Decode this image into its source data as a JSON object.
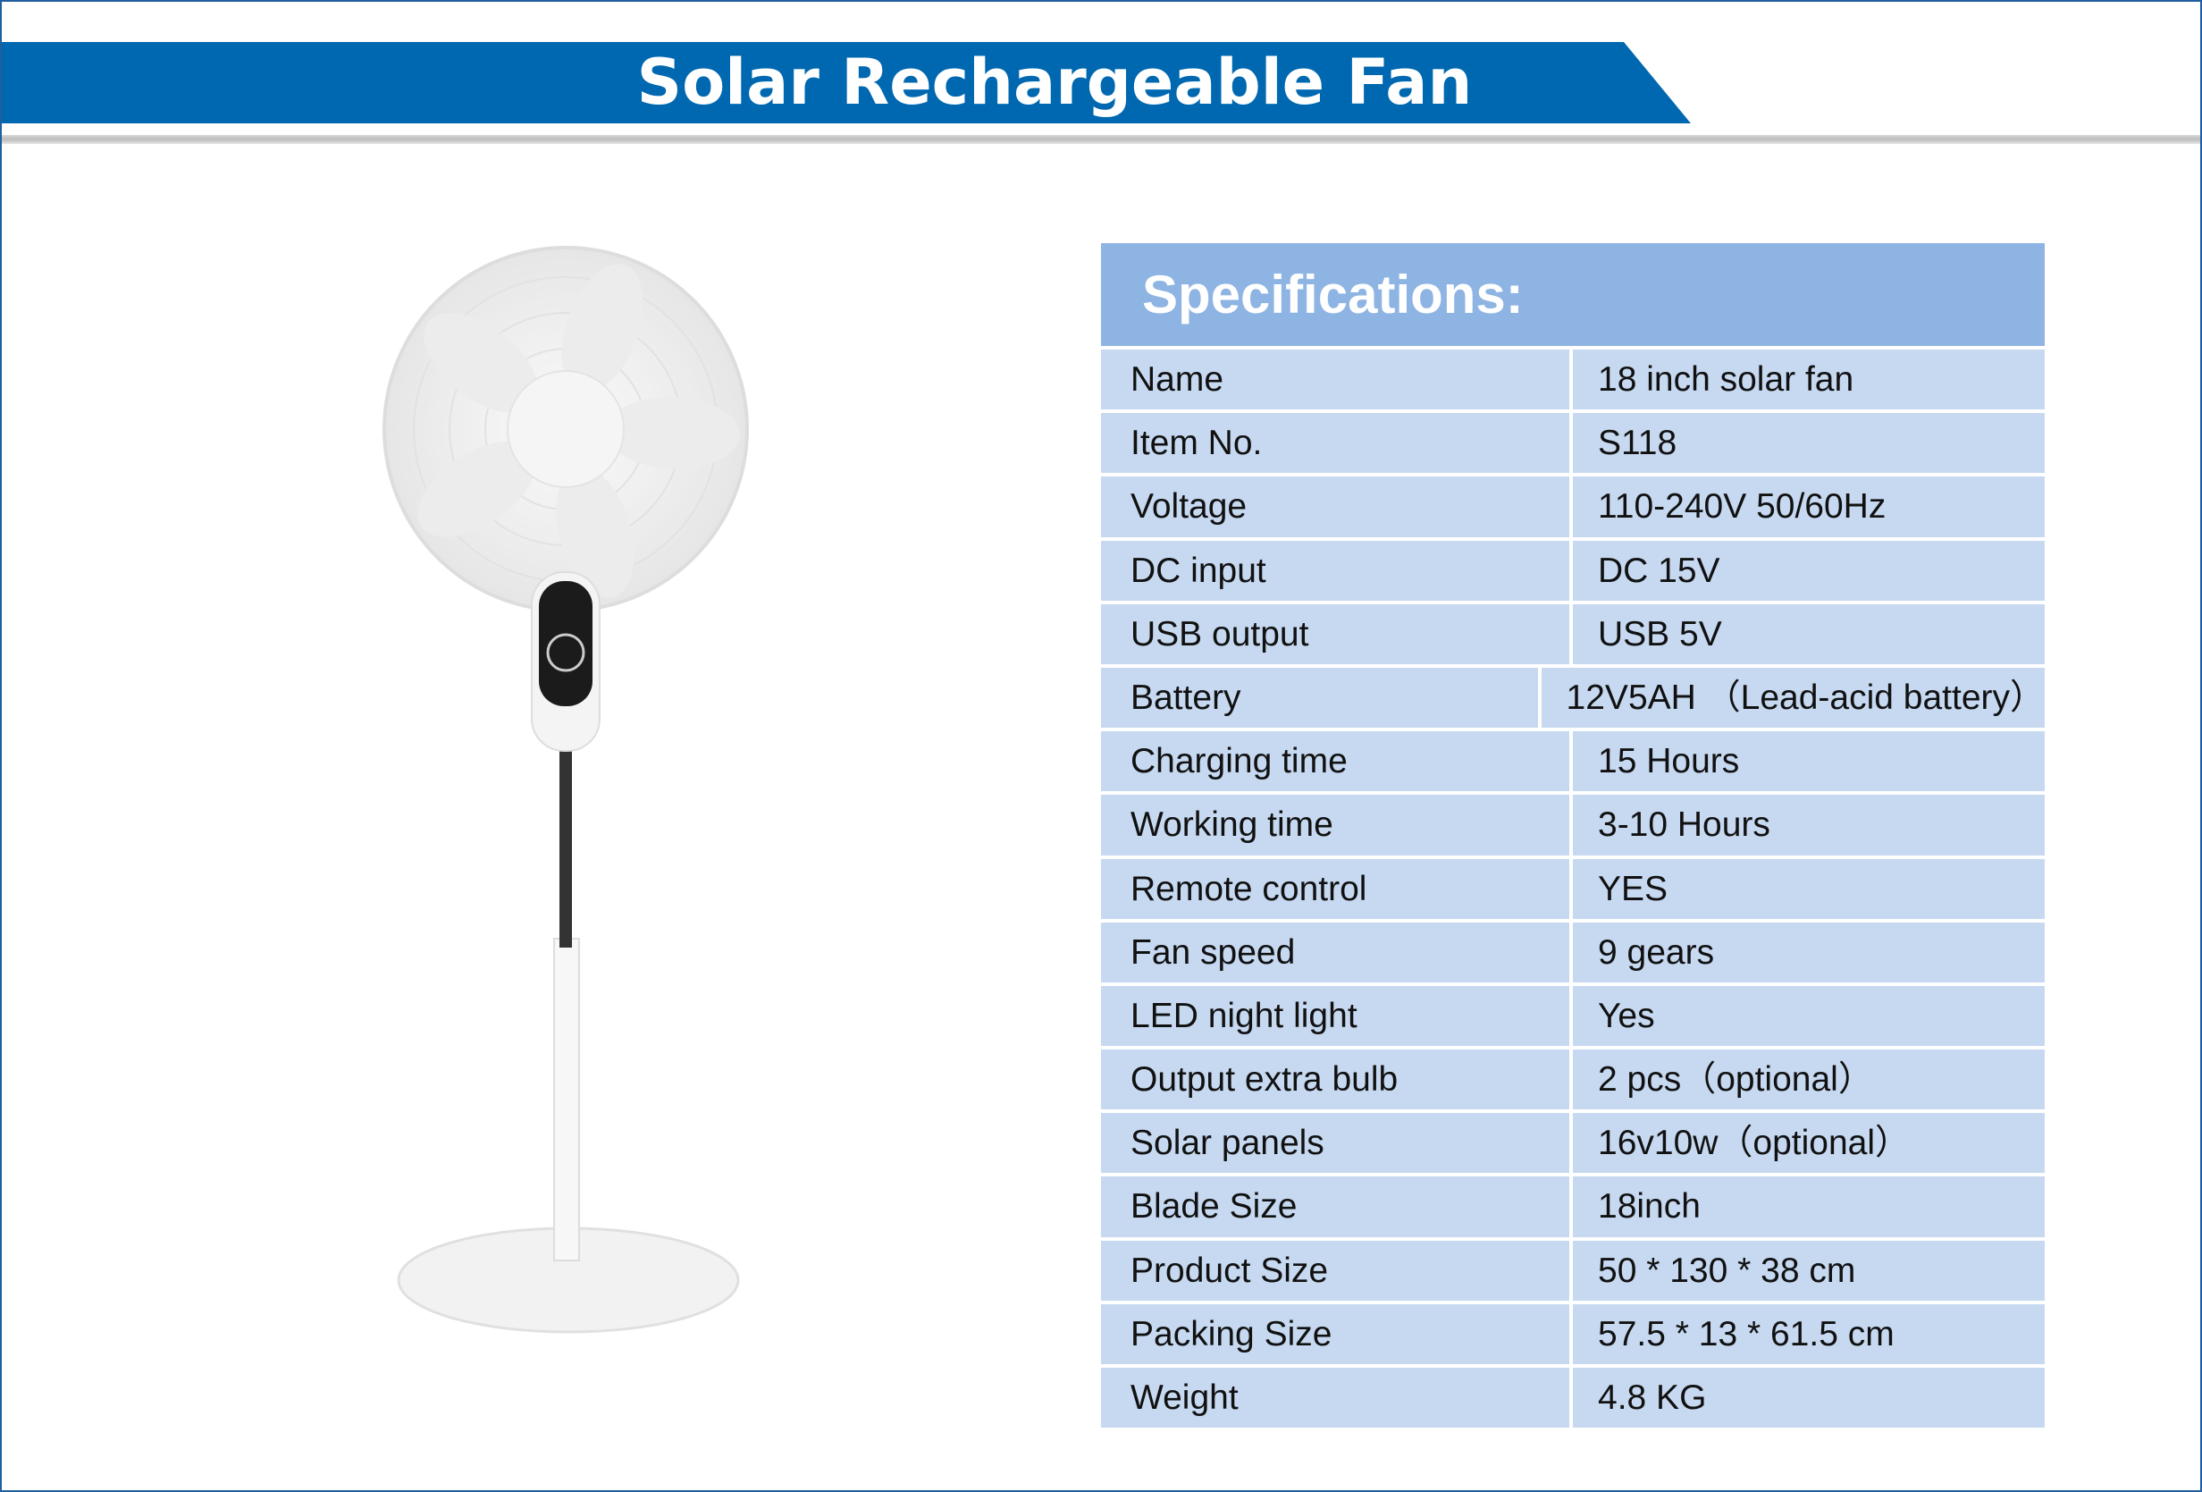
{
  "header": {
    "title": "Solar Rechargeable Fan"
  },
  "colors": {
    "banner": "#0068b0",
    "table_header": "#8eb4e3",
    "table_row": "#c6d9f1"
  },
  "specs": {
    "heading": "Specifications:",
    "rows": [
      {
        "label": "Name",
        "value": "18 inch solar fan"
      },
      {
        "label": "Item No.",
        "value": "S118"
      },
      {
        "label": "Voltage",
        "value": "110-240V 50/60Hz"
      },
      {
        "label": "DC input",
        "value": "DC 15V"
      },
      {
        "label": "USB output",
        "value": "USB 5V"
      },
      {
        "label": "Battery",
        "value": "12V5AH （Lead-acid battery）"
      },
      {
        "label": "Charging time",
        "value": "15 Hours"
      },
      {
        "label": "Working time",
        "value": "3-10 Hours"
      },
      {
        "label": "Remote control",
        "value": "YES"
      },
      {
        "label": "Fan speed",
        "value": "9 gears"
      },
      {
        "label": "LED night light",
        "value": "Yes"
      },
      {
        "label": "Output extra bulb",
        "value": "2 pcs（optional）"
      },
      {
        "label": "Solar panels",
        "value": "16v10w（optional）"
      },
      {
        "label": "Blade Size",
        "value": "18inch"
      },
      {
        "label": "Product Size",
        "value": "50 * 130 * 38 cm"
      },
      {
        "label": "Packing Size",
        "value": "57.5 * 13 * 61.5 cm"
      },
      {
        "label": "Weight",
        "value": "4.8 KG"
      }
    ]
  }
}
